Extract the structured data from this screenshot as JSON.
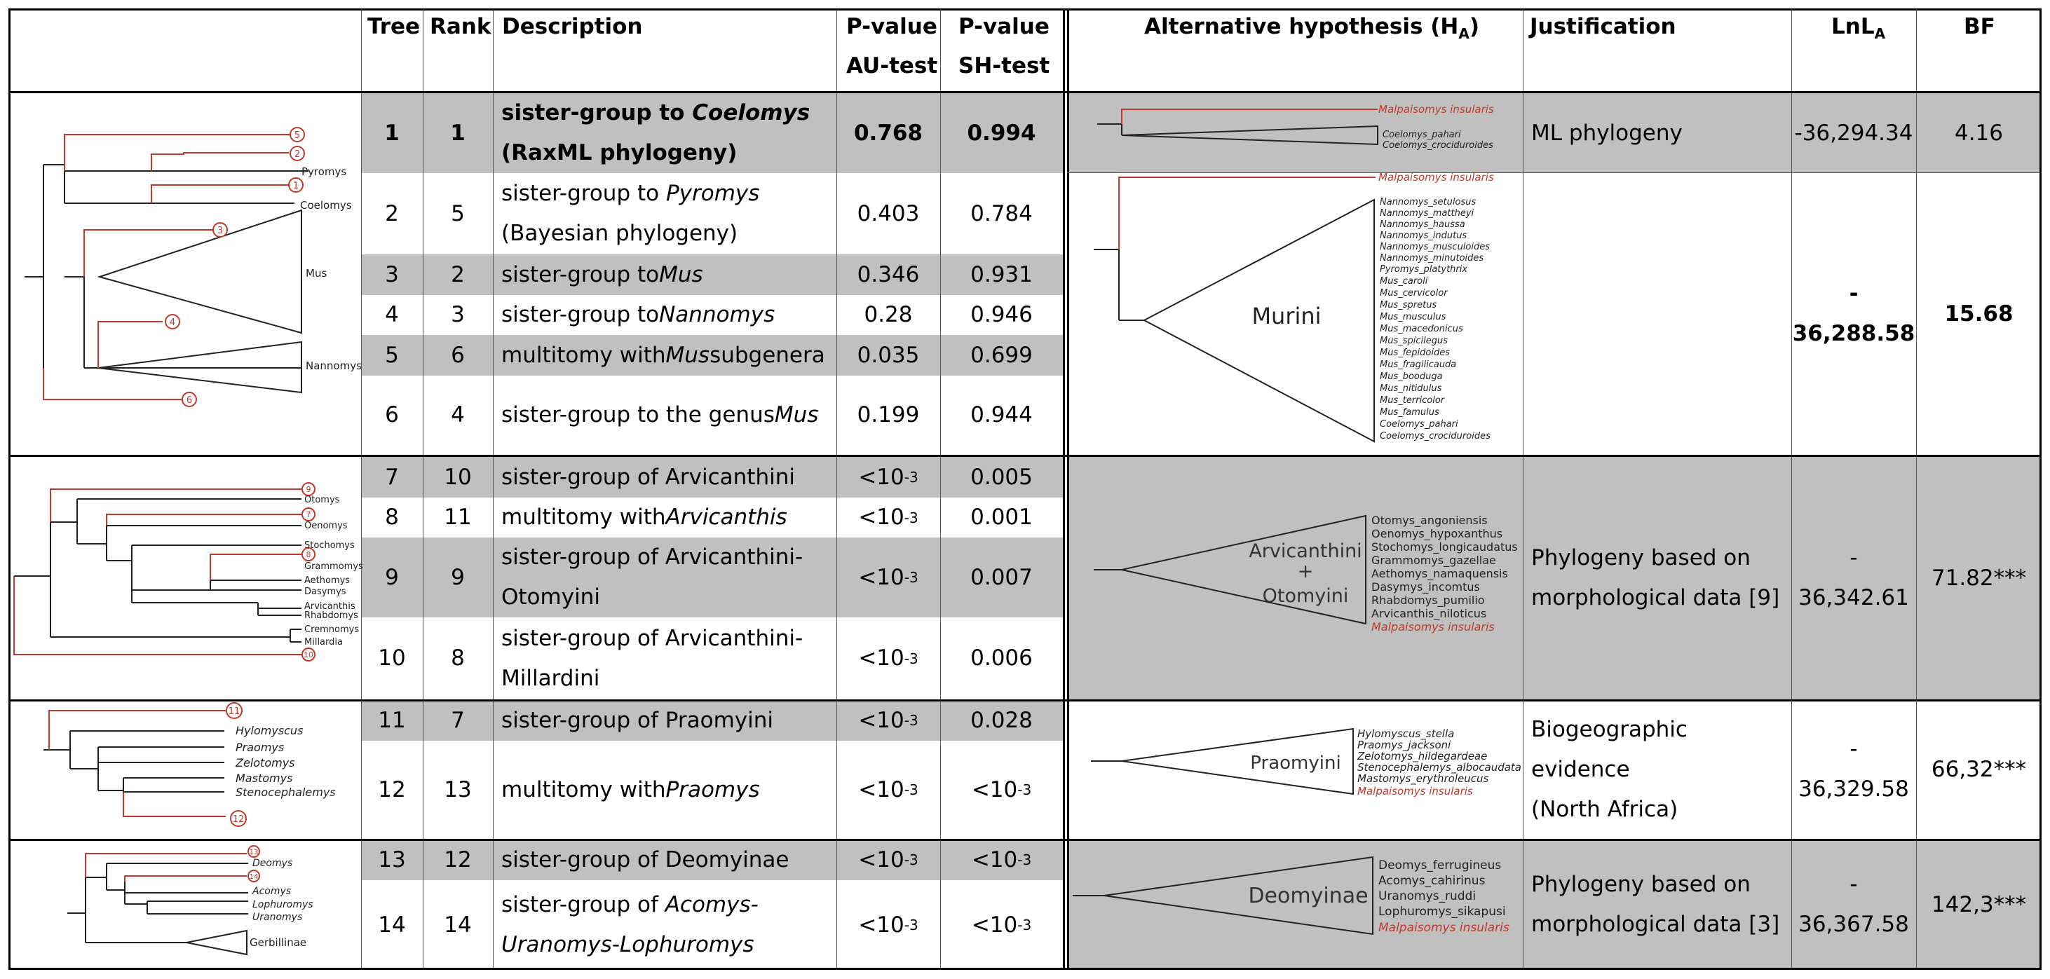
{
  "headers": {
    "tree": "Tree",
    "rank": "Rank",
    "description": "Description",
    "au_1": "P-value",
    "au_2": "AU-test",
    "sh_1": "P-value",
    "sh_2": "SH-test",
    "alt_main": "Alternative hypothesis (H",
    "alt_sub": "A",
    "alt_close": ")",
    "justification": "Justification",
    "lnl_main": "LnL",
    "lnl_sub": "A",
    "bf": "BF"
  },
  "rows": [
    {
      "tree": "1",
      "rank": "1",
      "desc_a": "sister-group to ",
      "desc_i": "Coelomys",
      "desc_b": "(RaxML phylogeny)",
      "au": "0.768",
      "sh": "0.994"
    },
    {
      "tree": "2",
      "rank": "5",
      "desc_a": "sister-group to ",
      "desc_i": "Pyromys",
      "desc_b": "(Bayesian phylogeny)",
      "au": "0.403",
      "sh": "0.784"
    },
    {
      "tree": "3",
      "rank": "2",
      "desc_a": "sister-group to ",
      "desc_i": "Mus",
      "au": "0.346",
      "sh": "0.931"
    },
    {
      "tree": "4",
      "rank": "3",
      "desc_a": "sister-group to ",
      "desc_i": "Nannomys",
      "au": "0.28",
      "sh": "0.946"
    },
    {
      "tree": "5",
      "rank": "6",
      "desc_a": "multitomy with ",
      "desc_i": "Mus",
      "desc_c": " subgenera",
      "au": "0.035",
      "sh": "0.699"
    },
    {
      "tree": "6",
      "rank": "4",
      "desc_a": "sister-group to the genus ",
      "desc_i": "Mus",
      "au": "0.199",
      "sh": "0.944"
    },
    {
      "tree": "7",
      "rank": "10",
      "desc_a": "sister-group of Arvicanthini",
      "au_base": "<10",
      "au_exp": "-3",
      "sh": "0.005"
    },
    {
      "tree": "8",
      "rank": "11",
      "desc_a": "multitomy with ",
      "desc_i": "Arvicanthis",
      "au_base": "<10",
      "au_exp": "-3",
      "sh": "0.001"
    },
    {
      "tree": "9",
      "rank": "9",
      "desc_a": "sister-group of Arvicanthini-",
      "desc_b": "Otomyini",
      "au_base": "<10",
      "au_exp": "-3",
      "sh": "0.007"
    },
    {
      "tree": "10",
      "rank": "8",
      "desc_a": "sister-group of Arvicanthini-",
      "desc_b": "Millardini",
      "au_base": "<10",
      "au_exp": "-3",
      "sh": "0.006"
    },
    {
      "tree": "11",
      "rank": "7",
      "desc_a": "sister-group of Praomyini",
      "au_base": "<10",
      "au_exp": "-3",
      "sh": "0.028"
    },
    {
      "tree": "12",
      "rank": "13",
      "desc_a": "multitomy with ",
      "desc_i": "Praomys",
      "au_base": "<10",
      "au_exp": "-3",
      "sh_base": "<10",
      "sh_exp": "-3"
    },
    {
      "tree": "13",
      "rank": "12",
      "desc_a": "sister-group of Deomyinae",
      "au_base": "<10",
      "au_exp": "-3",
      "sh_base": "<10",
      "sh_exp": "-3"
    },
    {
      "tree": "14",
      "rank": "14",
      "desc_a": "sister-group of ",
      "desc_i": "Acomys-",
      "desc_i2": "Uranomys-Lophuromys",
      "au_base": "<10",
      "au_exp": "-3",
      "sh_base": "<10",
      "sh_exp": "-3"
    }
  ],
  "hypotheses": [
    {
      "justification": "ML phylogeny",
      "lnl": "-36,294.34",
      "bf": "4.16"
    },
    {
      "justification": "",
      "lnl": "- 36,288.58",
      "bf": "15.68"
    },
    {
      "justification_1": "Phylogeny based on",
      "justification_2": "morphological data [9]",
      "lnl": "- 36,342.61",
      "bf": "71.82***"
    },
    {
      "justification_1": "Biogeographic evidence",
      "justification_2": "(North Africa)",
      "lnl": "- 36,329.58",
      "bf": "66,32***"
    },
    {
      "justification_1": "Phylogeny based on",
      "justification_2": "morphological data [3]",
      "lnl": "- 36,367.58",
      "bf": "142,3***"
    }
  ],
  "tree_labels": {
    "mus_group": [
      "Pyromys",
      "Coelomys",
      "Mus",
      "Nannomys"
    ],
    "mus_numbers": [
      "5",
      "2",
      "1",
      "3",
      "4",
      "6"
    ],
    "arv_group": [
      "Otomys",
      "Oenomys",
      "Stochomys",
      "Grammomys",
      "Aethomys",
      "Dasymys",
      "Arvicanthis",
      "Rhabdomys",
      "Cremnomys",
      "Millardia"
    ],
    "arv_numbers": [
      "9",
      "7",
      "8",
      "10"
    ],
    "pra_group": [
      "Hylomyscus",
      "Praomys",
      "Zelotomys",
      "Mastomys",
      "Stenocephalemys"
    ],
    "pra_numbers": [
      "11",
      "12"
    ],
    "deo_group": [
      "Deomys",
      "Acomys",
      "Lophuromys",
      "Uranomys",
      "Gerbillinae"
    ],
    "deo_numbers": [
      "13",
      "14"
    ]
  },
  "hypothesis_trees": {
    "h1_taxa": [
      "Malpaisomys insularis",
      "Coelomys_pahari",
      "Coelomys_crociduroides"
    ],
    "murini_label": "Murini",
    "murini_taxa": [
      "Malpaisomys insularis",
      "Nannomys_setulosus",
      "Nannomys_mattheyi",
      "Nannomys_haussa",
      "Nannomys_indutus",
      "Nannomys_musculoides",
      "Nannomys_minutoides",
      "Pyromys_platythrix",
      "Mus_caroli",
      "Mus_cervicolor",
      "Mus_spretus",
      "Mus_musculus",
      "Mus_macedonicus",
      "Mus_spicilegus",
      "Mus_fepidoides",
      "Mus_fragilicauda",
      "Mus_booduga",
      "Mus_nitidulus",
      "Mus_terricolor",
      "Mus_famulus",
      "Coelomys_pahari",
      "Coelomys_crociduroides"
    ],
    "arv_label_1": "Arvicanthini",
    "arv_label_2": "+",
    "arv_label_3": "Otomyini",
    "arv_taxa": [
      "Otomys_angoniensis",
      "Oenomys_hypoxanthus",
      "Stochomys_longicaudatus",
      "Grammomys_gazellae",
      "Aethomys_namaquensis",
      "Dasymys_incomtus",
      "Rhabdomys_pumilio",
      "Arvicanthis_niloticus",
      "Malpaisomys insularis"
    ],
    "pra_label": "Praomyini",
    "pra_taxa": [
      "Hylomyscus_stella",
      "Praomys_jacksoni",
      "Zelotomys_hildegardeae",
      "Stenocephalemys_albocaudata",
      "Mastomys_erythroleucus",
      "Malpaisomys insularis"
    ],
    "deo_label": "Deomyinae",
    "deo_taxa": [
      "Deomys_ferrugineus",
      "Acomys_cahirinus",
      "Uranomys_ruddi",
      "Lophuromys_sikapusi",
      "Malpaisomys insularis"
    ]
  },
  "colors": {
    "highlight_red": "#c0392b",
    "grey_band": "#c0c0c0"
  }
}
